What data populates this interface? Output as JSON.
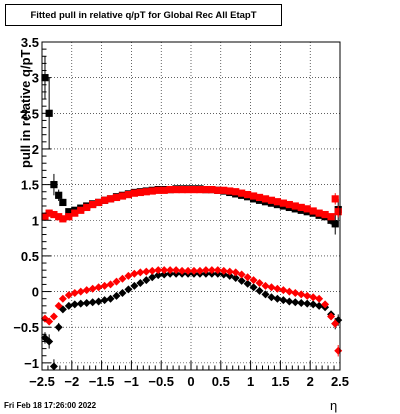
{
  "page": {
    "timestamp": "Fri Feb 18 17:26:00 2022"
  },
  "chart_data": {
    "type": "scatter",
    "title": "Fitted pull in relative q/pT for Global Rec All EtapT",
    "xlabel": "η",
    "ylabel": "pull in relative q/pT",
    "xlim": [
      -2.5,
      2.5
    ],
    "ylim": [
      -1.1,
      3.5
    ],
    "xticks": [
      -2.5,
      -2,
      -1.5,
      -1,
      -0.5,
      0,
      0.5,
      1,
      1.5,
      2,
      2.5
    ],
    "xtick_labels": [
      "−2.5",
      "−2",
      "−1.5",
      "−1",
      "−0.5",
      "0",
      "0.5",
      "1",
      "1.5",
      "2",
      "2.5"
    ],
    "yticks": [
      -1,
      -0.5,
      0,
      0.5,
      1,
      1.5,
      2,
      2.5,
      3,
      3.5
    ],
    "ytick_labels": [
      "−1",
      "−0.5",
      "0",
      "0.5",
      "1",
      "1.5",
      "2",
      "2.5",
      "3",
      "3.5"
    ],
    "grid": true,
    "legend": "none",
    "series": [
      {
        "color": "#000000",
        "marker": "square",
        "x": [
          -2.45,
          -2.38,
          -2.3,
          -2.22,
          -2.15,
          -2.05,
          -1.95,
          -1.85,
          -1.75,
          -1.65,
          -1.55,
          -1.45,
          -1.35,
          -1.25,
          -1.15,
          -1.05,
          -0.95,
          -0.85,
          -0.75,
          -0.65,
          -0.55,
          -0.45,
          -0.35,
          -0.25,
          -0.15,
          -0.05,
          0.05,
          0.15,
          0.25,
          0.35,
          0.45,
          0.55,
          0.65,
          0.75,
          0.85,
          0.95,
          1.05,
          1.15,
          1.25,
          1.35,
          1.45,
          1.55,
          1.65,
          1.75,
          1.85,
          1.95,
          2.05,
          2.15,
          2.25,
          2.35,
          2.42,
          2.47
        ],
        "y": [
          3.0,
          2.5,
          1.5,
          1.35,
          1.25,
          1.12,
          1.14,
          1.17,
          1.2,
          1.23,
          1.25,
          1.28,
          1.3,
          1.33,
          1.35,
          1.37,
          1.39,
          1.4,
          1.41,
          1.42,
          1.43,
          1.43,
          1.43,
          1.44,
          1.44,
          1.44,
          1.44,
          1.44,
          1.43,
          1.43,
          1.42,
          1.41,
          1.39,
          1.37,
          1.35,
          1.33,
          1.3,
          1.28,
          1.26,
          1.24,
          1.22,
          1.2,
          1.18,
          1.16,
          1.14,
          1.12,
          1.1,
          1.07,
          1.05,
          1.0,
          0.95,
          1.15
        ],
        "err": [
          0.3,
          0.5,
          0.15,
          0.08,
          0.05,
          0.02,
          0.02,
          0.02,
          0.02,
          0.02,
          0.02,
          0.02,
          0.02,
          0.02,
          0.02,
          0.02,
          0.02,
          0.02,
          0.02,
          0.02,
          0.02,
          0.02,
          0.02,
          0.02,
          0.02,
          0.02,
          0.02,
          0.02,
          0.02,
          0.02,
          0.02,
          0.02,
          0.02,
          0.02,
          0.02,
          0.02,
          0.02,
          0.02,
          0.02,
          0.02,
          0.02,
          0.02,
          0.02,
          0.02,
          0.02,
          0.02,
          0.03,
          0.03,
          0.04,
          0.06,
          0.15,
          0.15
        ]
      },
      {
        "color": "#ff0000",
        "marker": "square",
        "x": [
          -2.45,
          -2.38,
          -2.3,
          -2.22,
          -2.15,
          -2.05,
          -1.95,
          -1.85,
          -1.75,
          -1.65,
          -1.55,
          -1.45,
          -1.35,
          -1.25,
          -1.15,
          -1.05,
          -0.95,
          -0.85,
          -0.75,
          -0.65,
          -0.55,
          -0.45,
          -0.35,
          -0.25,
          -0.15,
          -0.05,
          0.05,
          0.15,
          0.25,
          0.35,
          0.45,
          0.55,
          0.65,
          0.75,
          0.85,
          0.95,
          1.05,
          1.15,
          1.25,
          1.35,
          1.45,
          1.55,
          1.65,
          1.75,
          1.85,
          1.95,
          2.05,
          2.15,
          2.25,
          2.35,
          2.42,
          2.47
        ],
        "y": [
          1.05,
          1.1,
          1.08,
          1.05,
          1.02,
          1.05,
          1.1,
          1.14,
          1.18,
          1.22,
          1.25,
          1.28,
          1.3,
          1.32,
          1.34,
          1.36,
          1.38,
          1.39,
          1.4,
          1.41,
          1.42,
          1.42,
          1.43,
          1.43,
          1.43,
          1.43,
          1.43,
          1.43,
          1.43,
          1.43,
          1.42,
          1.42,
          1.41,
          1.4,
          1.38,
          1.36,
          1.34,
          1.32,
          1.3,
          1.28,
          1.26,
          1.24,
          1.22,
          1.2,
          1.18,
          1.16,
          1.13,
          1.1,
          1.08,
          1.05,
          1.3,
          1.12
        ],
        "err": [
          0.06,
          0.05,
          0.04,
          0.03,
          0.03,
          0.02,
          0.02,
          0.02,
          0.02,
          0.02,
          0.02,
          0.02,
          0.02,
          0.02,
          0.02,
          0.02,
          0.02,
          0.02,
          0.02,
          0.02,
          0.02,
          0.02,
          0.02,
          0.02,
          0.02,
          0.02,
          0.02,
          0.02,
          0.02,
          0.02,
          0.02,
          0.02,
          0.02,
          0.02,
          0.02,
          0.02,
          0.02,
          0.02,
          0.02,
          0.02,
          0.02,
          0.02,
          0.02,
          0.02,
          0.02,
          0.02,
          0.02,
          0.02,
          0.03,
          0.04,
          0.08,
          0.08
        ]
      },
      {
        "color": "#000000",
        "marker": "diamond",
        "x": [
          -2.45,
          -2.38,
          -2.3,
          -2.22,
          -2.15,
          -2.05,
          -1.95,
          -1.85,
          -1.75,
          -1.65,
          -1.55,
          -1.45,
          -1.35,
          -1.25,
          -1.15,
          -1.05,
          -0.95,
          -0.85,
          -0.75,
          -0.65,
          -0.55,
          -0.45,
          -0.35,
          -0.25,
          -0.15,
          -0.05,
          0.05,
          0.15,
          0.25,
          0.35,
          0.45,
          0.55,
          0.65,
          0.75,
          0.85,
          0.95,
          1.05,
          1.15,
          1.25,
          1.35,
          1.45,
          1.55,
          1.65,
          1.75,
          1.85,
          1.95,
          2.05,
          2.15,
          2.25,
          2.35,
          2.42,
          2.47
        ],
        "y": [
          -0.65,
          -0.7,
          -1.05,
          -0.5,
          -0.25,
          -0.2,
          -0.18,
          -0.17,
          -0.16,
          -0.15,
          -0.14,
          -0.12,
          -0.1,
          -0.06,
          -0.02,
          0.03,
          0.08,
          0.12,
          0.16,
          0.2,
          0.23,
          0.24,
          0.25,
          0.25,
          0.25,
          0.25,
          0.25,
          0.25,
          0.25,
          0.25,
          0.25,
          0.24,
          0.22,
          0.19,
          0.15,
          0.11,
          0.06,
          0.01,
          -0.04,
          -0.08,
          -0.1,
          -0.12,
          -0.14,
          -0.15,
          -0.16,
          -0.17,
          -0.18,
          -0.2,
          -0.22,
          -0.32,
          -0.45,
          -0.4
        ],
        "err": [
          0.08,
          0.1,
          0.1,
          0.06,
          0.04,
          0.02,
          0.02,
          0.02,
          0.02,
          0.02,
          0.02,
          0.02,
          0.02,
          0.02,
          0.02,
          0.02,
          0.02,
          0.02,
          0.02,
          0.02,
          0.02,
          0.02,
          0.02,
          0.02,
          0.02,
          0.02,
          0.02,
          0.02,
          0.02,
          0.02,
          0.02,
          0.02,
          0.02,
          0.02,
          0.02,
          0.02,
          0.02,
          0.02,
          0.02,
          0.02,
          0.02,
          0.02,
          0.02,
          0.02,
          0.02,
          0.02,
          0.02,
          0.03,
          0.03,
          0.05,
          0.08,
          0.08
        ]
      },
      {
        "color": "#ff0000",
        "marker": "diamond",
        "x": [
          -2.45,
          -2.38,
          -2.3,
          -2.22,
          -2.15,
          -2.05,
          -1.95,
          -1.85,
          -1.75,
          -1.65,
          -1.55,
          -1.45,
          -1.35,
          -1.25,
          -1.15,
          -1.05,
          -0.95,
          -0.85,
          -0.75,
          -0.65,
          -0.55,
          -0.45,
          -0.35,
          -0.25,
          -0.15,
          -0.05,
          0.05,
          0.15,
          0.25,
          0.35,
          0.45,
          0.55,
          0.65,
          0.75,
          0.85,
          0.95,
          1.05,
          1.15,
          1.25,
          1.35,
          1.45,
          1.55,
          1.65,
          1.75,
          1.85,
          1.95,
          2.05,
          2.15,
          2.25,
          2.35,
          2.42,
          2.47
        ],
        "y": [
          -0.38,
          -0.42,
          -0.35,
          -0.2,
          -0.1,
          -0.05,
          -0.02,
          0.0,
          0.02,
          0.04,
          0.06,
          0.08,
          0.1,
          0.14,
          0.18,
          0.22,
          0.25,
          0.27,
          0.28,
          0.29,
          0.3,
          0.3,
          0.3,
          0.3,
          0.29,
          0.29,
          0.29,
          0.29,
          0.3,
          0.3,
          0.3,
          0.29,
          0.28,
          0.27,
          0.24,
          0.2,
          0.16,
          0.12,
          0.08,
          0.06,
          0.04,
          0.02,
          0.0,
          -0.02,
          -0.04,
          -0.06,
          -0.08,
          -0.1,
          -0.18,
          -0.35,
          -0.45,
          -0.83
        ],
        "err": [
          0.05,
          0.05,
          0.04,
          0.03,
          0.02,
          0.02,
          0.02,
          0.02,
          0.02,
          0.02,
          0.02,
          0.02,
          0.02,
          0.02,
          0.02,
          0.02,
          0.02,
          0.02,
          0.02,
          0.02,
          0.02,
          0.02,
          0.02,
          0.02,
          0.02,
          0.02,
          0.02,
          0.02,
          0.02,
          0.02,
          0.02,
          0.02,
          0.02,
          0.02,
          0.02,
          0.02,
          0.02,
          0.02,
          0.02,
          0.02,
          0.02,
          0.02,
          0.02,
          0.02,
          0.02,
          0.02,
          0.02,
          0.02,
          0.03,
          0.04,
          0.06,
          0.08
        ]
      }
    ]
  }
}
